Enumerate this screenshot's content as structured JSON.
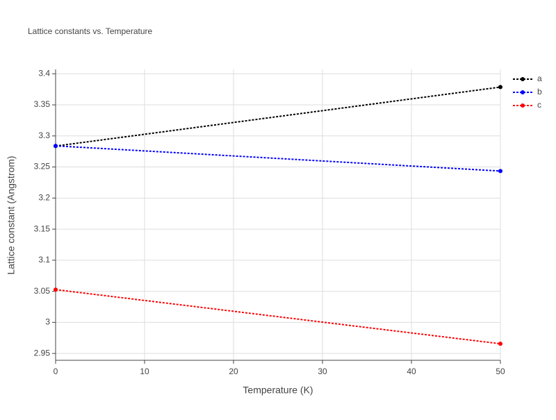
{
  "chart_data": {
    "type": "line",
    "title": "Lattice constants vs. Temperature",
    "x_label": "Temperature (K)",
    "y_label": "Lattice constant (Angstrom)",
    "x": [
      0,
      50
    ],
    "series": [
      {
        "name": "a",
        "color": "#000000",
        "values": [
          3.2837,
          3.3786
        ]
      },
      {
        "name": "b",
        "color": "#0000ff",
        "values": [
          3.284,
          3.2435
        ]
      },
      {
        "name": "c",
        "color": "#ff0000",
        "values": [
          3.0527,
          2.9656
        ]
      }
    ],
    "xlim": [
      0,
      50
    ],
    "xticks": [
      0,
      10,
      20,
      30,
      40,
      50
    ],
    "ylim": [
      2.939,
      3.407
    ],
    "yticks": [
      2.95,
      3,
      3.05,
      3.1,
      3.15,
      3.2,
      3.25,
      3.3,
      3.35,
      3.4
    ],
    "grid": true,
    "legend": "top-right"
  }
}
